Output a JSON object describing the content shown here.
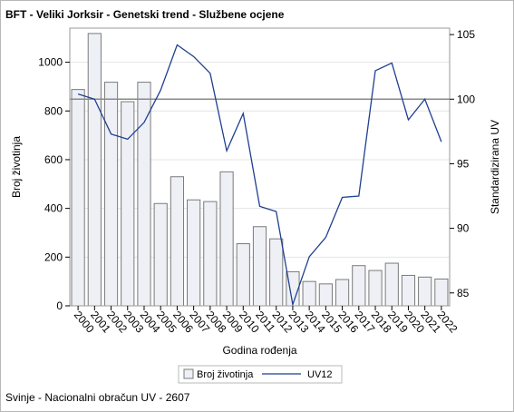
{
  "chart_data": {
    "type": "bar",
    "title": "BFT - Veliki Jorksir - Genetski trend - Službene ocjene",
    "footnote": "Svinje - Nacionalni obračun UV - 2607",
    "xlabel": "Godina rođenja",
    "ylabel": "Broj životinja",
    "y2label": "Standardizirana UV",
    "categories": [
      "2000",
      "2001",
      "2002",
      "2003",
      "2004",
      "2005",
      "2006",
      "2007",
      "2008",
      "2009",
      "2010",
      "2011",
      "2012",
      "2013",
      "2014",
      "2015",
      "2016",
      "2017",
      "2018",
      "2019",
      "2020",
      "2021",
      "2022"
    ],
    "ylim": [
      0,
      1140
    ],
    "yticks": [
      0,
      200,
      400,
      600,
      800,
      1000
    ],
    "y2lim": [
      84,
      105.5
    ],
    "y2ticks": [
      85,
      90,
      95,
      100,
      105
    ],
    "reference_line_y2": 100,
    "grid": true,
    "legend_position": "bottom",
    "series": [
      {
        "name": "Broj životinja",
        "type": "bar",
        "axis": "left",
        "color": "#eef0f6",
        "values": [
          888,
          1118,
          918,
          838,
          918,
          420,
          530,
          435,
          428,
          550,
          255,
          325,
          275,
          140,
          100,
          90,
          108,
          165,
          145,
          175,
          125,
          118,
          110
        ]
      },
      {
        "name": "UV12",
        "type": "line",
        "axis": "right",
        "color": "#1f3f8f",
        "values": [
          100.4,
          100.0,
          97.3,
          96.9,
          98.2,
          100.7,
          104.2,
          103.3,
          102.0,
          96.0,
          98.9,
          91.7,
          91.3,
          84.1,
          87.8,
          89.3,
          92.4,
          92.5,
          102.2,
          102.8,
          98.4,
          100.0,
          96.7
        ]
      }
    ]
  }
}
